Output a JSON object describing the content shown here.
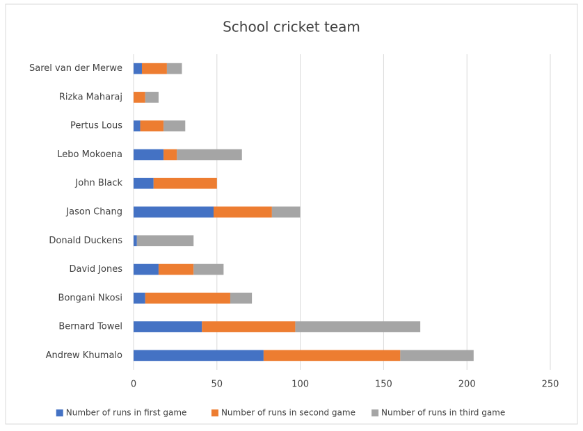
{
  "chart_data": {
    "type": "stacked-bar-horizontal",
    "title": "School cricket team",
    "categories": [
      "Andrew Khumalo",
      "Bernard Towel",
      "Bongani Nkosi",
      "David Jones",
      "Donald Duckens",
      "Jason Chang",
      "John Black",
      "Lebo Mokoena",
      "Pertus Lous",
      "Rizka Maharaj",
      "Sarel van der Merwe"
    ],
    "series": [
      {
        "name": "Number of runs in first game",
        "color": "#4472c4",
        "values": [
          78,
          41,
          7,
          15,
          2,
          48,
          12,
          18,
          4,
          0,
          5
        ]
      },
      {
        "name": "Number of runs in second game",
        "color": "#ed7d31",
        "values": [
          82,
          56,
          51,
          21,
          0,
          35,
          38,
          8,
          14,
          7,
          15
        ]
      },
      {
        "name": "Number of runs in third game",
        "color": "#a5a5a5",
        "values": [
          44,
          75,
          13,
          18,
          34,
          17,
          0,
          39,
          13,
          8,
          9
        ]
      }
    ],
    "xlim": [
      0,
      250
    ],
    "xticks": [
      0,
      50,
      100,
      150,
      200,
      250
    ],
    "grid": true,
    "legend": "bottom"
  }
}
